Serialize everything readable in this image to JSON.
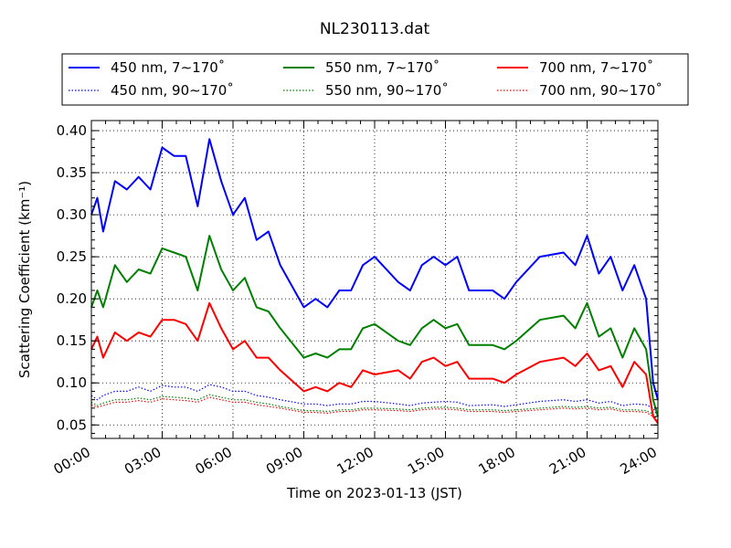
{
  "chart_data": {
    "type": "line",
    "title": "NL230113.dat",
    "xlabel": "Time on 2023-01-13 (JST)",
    "ylabel": "Scattering Coefficient (km⁻¹)",
    "xlim": [
      0,
      24
    ],
    "ylim": [
      0.034,
      0.412
    ],
    "grid": true,
    "legend_placement": "top, above plot",
    "x_ticks": [
      0,
      3,
      6,
      9,
      12,
      15,
      18,
      21,
      24
    ],
    "x_tick_labels": [
      "00:00",
      "03:00",
      "06:00",
      "09:00",
      "12:00",
      "15:00",
      "18:00",
      "21:00",
      "24:00"
    ],
    "y_ticks": [
      0.05,
      0.1,
      0.15,
      0.2,
      0.25,
      0.3,
      0.35,
      0.4
    ],
    "y_tick_labels": [
      "0.05",
      "0.10",
      "0.15",
      "0.20",
      "0.25",
      "0.30",
      "0.35",
      "0.40"
    ],
    "x": [
      0,
      0.25,
      0.5,
      1,
      1.5,
      2,
      2.5,
      3,
      3.5,
      4,
      4.5,
      5,
      5.5,
      6,
      6.5,
      7,
      7.5,
      8,
      9,
      9.5,
      10,
      10.5,
      11,
      11.5,
      12,
      13,
      13.5,
      14,
      14.5,
      15,
      15.5,
      16,
      17,
      17.5,
      18,
      19,
      20,
      20.5,
      21,
      21.5,
      22,
      22.5,
      23,
      23.5,
      23.8,
      24
    ],
    "series": [
      {
        "name": "450 nm, 7∼170˚",
        "color": "#0000ff",
        "style": "solid",
        "values": [
          0.3,
          0.32,
          0.28,
          0.34,
          0.33,
          0.345,
          0.33,
          0.38,
          0.37,
          0.37,
          0.31,
          0.39,
          0.34,
          0.3,
          0.32,
          0.27,
          0.28,
          0.24,
          0.19,
          0.2,
          0.19,
          0.21,
          0.21,
          0.24,
          0.25,
          0.22,
          0.21,
          0.24,
          0.25,
          0.24,
          0.25,
          0.21,
          0.21,
          0.2,
          0.22,
          0.25,
          0.255,
          0.24,
          0.275,
          0.23,
          0.25,
          0.21,
          0.24,
          0.2,
          0.1,
          0.08
        ]
      },
      {
        "name": "550 nm, 7∼170˚",
        "color": "#008000",
        "style": "solid",
        "values": [
          0.19,
          0.21,
          0.19,
          0.24,
          0.22,
          0.235,
          0.23,
          0.26,
          0.255,
          0.25,
          0.21,
          0.275,
          0.235,
          0.21,
          0.225,
          0.19,
          0.185,
          0.165,
          0.13,
          0.135,
          0.13,
          0.14,
          0.14,
          0.165,
          0.17,
          0.15,
          0.145,
          0.165,
          0.175,
          0.165,
          0.17,
          0.145,
          0.145,
          0.14,
          0.15,
          0.175,
          0.18,
          0.165,
          0.195,
          0.155,
          0.165,
          0.13,
          0.165,
          0.14,
          0.08,
          0.06
        ]
      },
      {
        "name": "700 nm, 7∼170˚",
        "color": "#ff0000",
        "style": "solid",
        "values": [
          0.14,
          0.155,
          0.13,
          0.16,
          0.15,
          0.16,
          0.155,
          0.175,
          0.175,
          0.17,
          0.15,
          0.195,
          0.165,
          0.14,
          0.15,
          0.13,
          0.13,
          0.115,
          0.09,
          0.095,
          0.09,
          0.1,
          0.095,
          0.115,
          0.11,
          0.115,
          0.105,
          0.125,
          0.13,
          0.12,
          0.125,
          0.105,
          0.105,
          0.1,
          0.11,
          0.125,
          0.13,
          0.12,
          0.135,
          0.115,
          0.12,
          0.095,
          0.125,
          0.11,
          0.06,
          0.052
        ]
      },
      {
        "name": "450 nm, 90∼170˚",
        "color": "#0000ff",
        "style": "dotted",
        "values": [
          0.085,
          0.08,
          0.085,
          0.09,
          0.09,
          0.095,
          0.09,
          0.097,
          0.095,
          0.095,
          0.09,
          0.098,
          0.095,
          0.09,
          0.09,
          0.085,
          0.083,
          0.08,
          0.075,
          0.075,
          0.073,
          0.075,
          0.075,
          0.078,
          0.078,
          0.075,
          0.073,
          0.076,
          0.077,
          0.078,
          0.077,
          0.073,
          0.074,
          0.072,
          0.074,
          0.078,
          0.08,
          0.078,
          0.08,
          0.076,
          0.078,
          0.073,
          0.075,
          0.074,
          0.07,
          0.06
        ]
      },
      {
        "name": "550 nm, 90∼170˚",
        "color": "#008000",
        "style": "dotted",
        "values": [
          0.077,
          0.073,
          0.076,
          0.08,
          0.08,
          0.082,
          0.08,
          0.084,
          0.083,
          0.082,
          0.08,
          0.086,
          0.083,
          0.08,
          0.08,
          0.077,
          0.075,
          0.072,
          0.067,
          0.067,
          0.066,
          0.068,
          0.068,
          0.07,
          0.07,
          0.069,
          0.068,
          0.07,
          0.071,
          0.071,
          0.07,
          0.068,
          0.068,
          0.067,
          0.068,
          0.07,
          0.072,
          0.071,
          0.072,
          0.07,
          0.071,
          0.068,
          0.068,
          0.067,
          0.063,
          0.055
        ]
      },
      {
        "name": "700 nm, 90∼170˚",
        "color": "#ff0000",
        "style": "dotted",
        "values": [
          0.074,
          0.071,
          0.073,
          0.077,
          0.077,
          0.079,
          0.077,
          0.081,
          0.08,
          0.079,
          0.077,
          0.083,
          0.08,
          0.077,
          0.077,
          0.074,
          0.072,
          0.07,
          0.065,
          0.065,
          0.064,
          0.066,
          0.066,
          0.068,
          0.068,
          0.067,
          0.066,
          0.068,
          0.069,
          0.069,
          0.068,
          0.066,
          0.066,
          0.065,
          0.066,
          0.068,
          0.07,
          0.069,
          0.07,
          0.068,
          0.069,
          0.066,
          0.066,
          0.065,
          0.06,
          0.052
        ]
      }
    ]
  }
}
